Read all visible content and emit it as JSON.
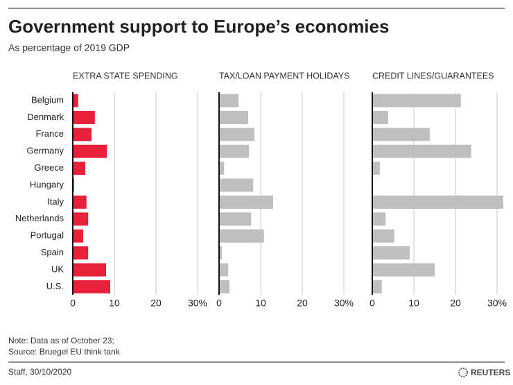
{
  "title": "Government support to Europe’s economies",
  "subtitle": "As percentage of 2019 GDP",
  "note": "Note: Data as of October 23;",
  "source": "Source: Bruegel EU think tank",
  "credit": "Staff,  30/10/2020",
  "brand": "REUTERS",
  "chart_data": [
    {
      "type": "bar",
      "orientation": "horizontal",
      "title": "EXTRA STATE SPENDING",
      "color": "#e8213a",
      "categories": [
        "Belgium",
        "Denmark",
        "France",
        "Germany",
        "Greece",
        "Hungary",
        "Italy",
        "Netherlands",
        "Portugal",
        "Spain",
        "UK",
        "U.S."
      ],
      "values": [
        1.3,
        5.3,
        4.5,
        8.2,
        3.0,
        0.3,
        3.3,
        3.7,
        2.5,
        3.7,
        8.0,
        9.0
      ],
      "xlim": [
        0,
        32
      ],
      "xticks": [
        0,
        10,
        20,
        {
          "value": 30,
          "label": "30%"
        }
      ],
      "grid": true
    },
    {
      "type": "bar",
      "orientation": "horizontal",
      "title": "TAX/LOAN PAYMENT HOLIDAYS",
      "color": "#bfbfbf",
      "values": [
        4.7,
        7.0,
        8.5,
        7.2,
        1.2,
        8.2,
        13.0,
        7.7,
        10.8,
        0.7,
        2.2,
        2.5
      ],
      "xlim": [
        0,
        32
      ],
      "xticks": [
        0,
        10,
        20,
        {
          "value": 30,
          "label": "30%"
        }
      ],
      "grid": true
    },
    {
      "type": "bar",
      "orientation": "horizontal",
      "title": "CREDIT LINES/GUARANTEES",
      "color": "#bfbfbf",
      "values": [
        21.3,
        3.8,
        13.8,
        23.8,
        1.8,
        0,
        31.5,
        3.2,
        5.3,
        9.0,
        15.0,
        2.3
      ],
      "xlim": [
        0,
        32
      ],
      "xticks": [
        0,
        10,
        20,
        {
          "value": 30,
          "label": "30%"
        }
      ],
      "grid": true
    }
  ]
}
